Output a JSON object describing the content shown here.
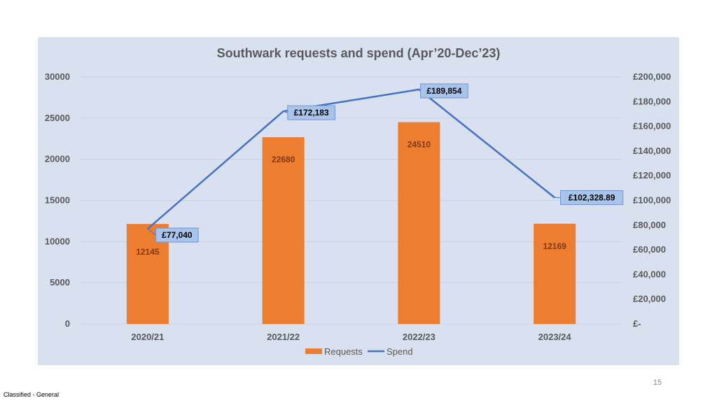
{
  "page": {
    "number": "15",
    "classification": "Classified - General"
  },
  "colors": {
    "panel": "#d9e1f0",
    "requests_bar": "#ed7d31",
    "spend_line": "#4472c4",
    "spend_label_fill": "#a9c4eb",
    "spend_label_border": "#6f95d3",
    "grid": "#c9d3e6"
  },
  "chart_data": {
    "type": "bar",
    "title": "Southwark requests and spend (Apr’20-Dec’23)",
    "categories": [
      "2020/21",
      "2021/22",
      "2022/23",
      "2023/24"
    ],
    "left_axis": {
      "ylim": [
        0,
        30000
      ],
      "ticks": [
        0,
        5000,
        10000,
        15000,
        20000,
        25000,
        30000
      ],
      "tick_labels": [
        "0",
        "5000",
        "10000",
        "15000",
        "20000",
        "25000",
        "30000"
      ]
    },
    "right_axis": {
      "ylim": [
        0,
        200000
      ],
      "ticks": [
        0,
        20000,
        40000,
        60000,
        80000,
        100000,
        120000,
        140000,
        160000,
        180000,
        200000
      ],
      "tick_labels": [
        "£-",
        "£20,000",
        "£40,000",
        "£60,000",
        "£80,000",
        "£100,000",
        "£120,000",
        "£140,000",
        "£160,000",
        "£180,000",
        "£200,000"
      ]
    },
    "grid": true,
    "legend_position": "bottom",
    "series": [
      {
        "name": "Requests",
        "type": "bar",
        "axis": "left",
        "values": [
          12145,
          22680,
          24510,
          12169
        ],
        "data_labels": [
          "12145",
          "22680",
          "24510",
          "12169"
        ]
      },
      {
        "name": "Spend",
        "type": "line",
        "axis": "right",
        "values": [
          77040,
          172183,
          189854,
          102328.89
        ],
        "data_labels": [
          "£77,040",
          "£172,183",
          "£189,854",
          "£102,328.89"
        ]
      }
    ]
  }
}
